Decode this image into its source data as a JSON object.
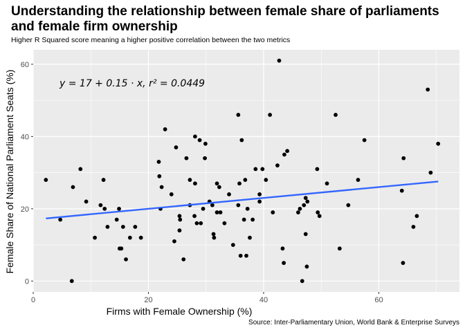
{
  "title": "Understanding the relationship between female share of parliaments and female firm ownership",
  "subtitle": "Higher R Squared score meaning a higher positive correlation between the two metrics",
  "caption": "Source: Inter-Parliamentary Union, World Bank & Enterprise Surveys",
  "chart_data": {
    "type": "scatter",
    "xlabel": "Firms with Female Ownership (%)",
    "ylabel": "Female Share of National Parliament Seats (%)",
    "xlim": [
      0,
      74
    ],
    "ylim": [
      -3,
      64
    ],
    "xticks": [
      0,
      20,
      40,
      60
    ],
    "yticks": [
      0,
      20,
      40,
      60
    ],
    "grid": true,
    "annotation": "y = 17 + 0.15 · x,  r² = 0.0449",
    "regression": {
      "intercept": 17,
      "slope": 0.15,
      "r_squared": 0.0449,
      "x_range": [
        2.2,
        70.3
      ]
    },
    "colors": {
      "panel": "#ebebeb",
      "grid": "#ffffff",
      "points": "#000000",
      "line": "#3366ff"
    },
    "points": [
      [
        2.2,
        28
      ],
      [
        4.7,
        17
      ],
      [
        6.7,
        0
      ],
      [
        6.9,
        26
      ],
      [
        8.2,
        31
      ],
      [
        9.2,
        22
      ],
      [
        10.7,
        12
      ],
      [
        11.7,
        21
      ],
      [
        12.2,
        28
      ],
      [
        12.4,
        20
      ],
      [
        12.9,
        15
      ],
      [
        14.5,
        17
      ],
      [
        14.9,
        20
      ],
      [
        15.0,
        9
      ],
      [
        15.3,
        9
      ],
      [
        15.6,
        15
      ],
      [
        16.1,
        6
      ],
      [
        16.8,
        12
      ],
      [
        17.7,
        15
      ],
      [
        18.7,
        12
      ],
      [
        21.8,
        33
      ],
      [
        21.9,
        29
      ],
      [
        22.1,
        20
      ],
      [
        22.3,
        26
      ],
      [
        22.9,
        42
      ],
      [
        24.0,
        24
      ],
      [
        24.5,
        11
      ],
      [
        24.8,
        37
      ],
      [
        25.4,
        18
      ],
      [
        25.4,
        14
      ],
      [
        25.5,
        17
      ],
      [
        26.1,
        6
      ],
      [
        26.6,
        34
      ],
      [
        27.2,
        21
      ],
      [
        27.2,
        28
      ],
      [
        28.0,
        18
      ],
      [
        28.1,
        40
      ],
      [
        28.1,
        27
      ],
      [
        28.4,
        16
      ],
      [
        28.9,
        39
      ],
      [
        29.1,
        16
      ],
      [
        29.5,
        20
      ],
      [
        29.8,
        34
      ],
      [
        29.9,
        38
      ],
      [
        30.6,
        22
      ],
      [
        31.1,
        21
      ],
      [
        31.3,
        13
      ],
      [
        31.4,
        12
      ],
      [
        31.9,
        27
      ],
      [
        31.9,
        19
      ],
      [
        32.3,
        26
      ],
      [
        32.5,
        19
      ],
      [
        33.2,
        16
      ],
      [
        34.0,
        24
      ],
      [
        34.7,
        10
      ],
      [
        35.6,
        21
      ],
      [
        35.6,
        46
      ],
      [
        35.8,
        27
      ],
      [
        36.0,
        7
      ],
      [
        36.2,
        39
      ],
      [
        36.6,
        17
      ],
      [
        36.8,
        28
      ],
      [
        37.0,
        7
      ],
      [
        37.2,
        20
      ],
      [
        37.6,
        12
      ],
      [
        38.1,
        17
      ],
      [
        38.6,
        31
      ],
      [
        39.3,
        22
      ],
      [
        39.3,
        24
      ],
      [
        39.8,
        31
      ],
      [
        40.4,
        28
      ],
      [
        41.1,
        46
      ],
      [
        41.6,
        19
      ],
      [
        42.4,
        32
      ],
      [
        42.7,
        61
      ],
      [
        43.3,
        9
      ],
      [
        43.5,
        5
      ],
      [
        43.6,
        35
      ],
      [
        44.1,
        36
      ],
      [
        46.0,
        19
      ],
      [
        46.3,
        20
      ],
      [
        46.7,
        0
      ],
      [
        47.0,
        21
      ],
      [
        47.3,
        13
      ],
      [
        47.3,
        23
      ],
      [
        47.5,
        4
      ],
      [
        47.6,
        22
      ],
      [
        49.3,
        31
      ],
      [
        49.4,
        19
      ],
      [
        49.7,
        18
      ],
      [
        51.0,
        27
      ],
      [
        52.5,
        46
      ],
      [
        53.2,
        9
      ],
      [
        54.7,
        21
      ],
      [
        56.4,
        28
      ],
      [
        57.5,
        39
      ],
      [
        64.0,
        25
      ],
      [
        64.2,
        5
      ],
      [
        64.3,
        34
      ],
      [
        66.0,
        15
      ],
      [
        66.6,
        18
      ],
      [
        68.5,
        53
      ],
      [
        69.0,
        30
      ],
      [
        70.3,
        38
      ]
    ]
  }
}
